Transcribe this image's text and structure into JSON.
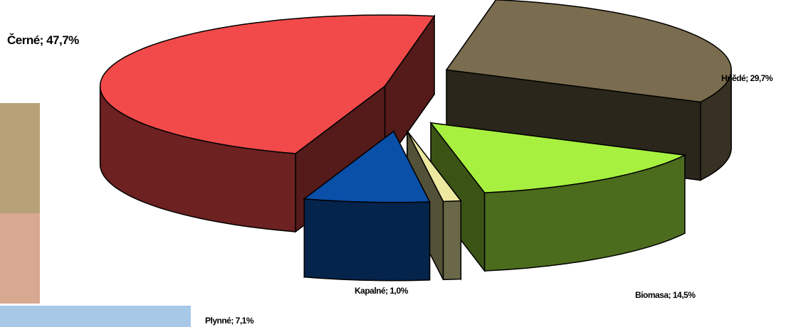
{
  "chart_data": {
    "type": "pie3d",
    "values": [
      29.7,
      14.5,
      1.0,
      7.1,
      47.7
    ],
    "value_labels": [
      "Hnědé; 29,7%",
      "Biomasa; 14,5%",
      "Kapalné; 1,0%",
      "Plynné; 7,1%",
      "Černé; 47,7%"
    ],
    "colors": [
      "#7a6c4e",
      "#a8f040",
      "#ece8a0",
      "#0a4fa8",
      "#f24a4a"
    ]
  }
}
